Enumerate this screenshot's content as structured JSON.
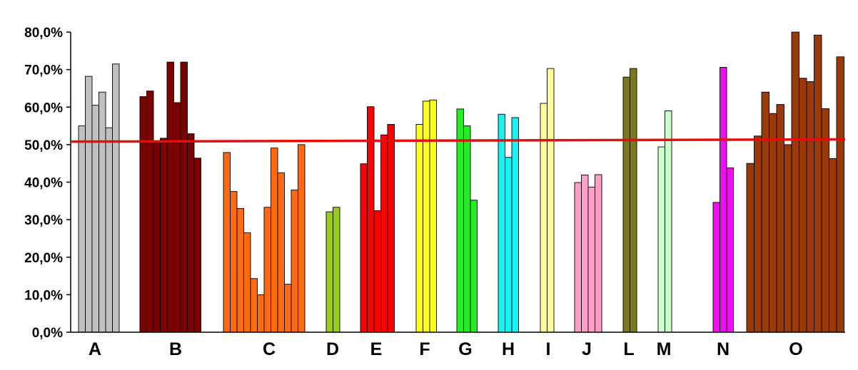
{
  "chart_data": {
    "type": "bar",
    "title": "",
    "xlabel": "",
    "ylabel": "",
    "ylim": [
      0,
      80
    ],
    "y_ticks": [
      "0,0%",
      "10,0%",
      "20,0%",
      "30,0%",
      "40,0%",
      "50,0%",
      "60,0%",
      "70,0%",
      "80,0%"
    ],
    "grid": false,
    "legend": "none",
    "reference_line": {
      "value": 50.8,
      "value_end": 51.4,
      "color": "#e01010"
    },
    "groups": [
      {
        "label": "A",
        "color": "#c0c0c0",
        "values": [
          55.0,
          68.2,
          60.5,
          64.0,
          54.5,
          71.5
        ]
      },
      {
        "label": "B",
        "color": "#7b0000",
        "values": [
          62.8,
          64.3,
          50.7,
          51.7,
          72.0,
          61.2,
          72.0,
          52.9,
          46.4
        ]
      },
      {
        "label": "C",
        "color": "#ff6a13",
        "values": [
          47.9,
          37.5,
          33.0,
          26.5,
          14.3,
          10.0,
          33.3,
          49.1,
          42.5,
          12.8,
          37.9,
          50.0
        ]
      },
      {
        "label": "D",
        "color": "#99cc1a",
        "values": [
          32.1,
          33.3
        ]
      },
      {
        "label": "E",
        "color": "#ff0000",
        "values": [
          44.9,
          60.1,
          32.4,
          52.6,
          55.4
        ]
      },
      {
        "label": "F",
        "color": "#ffff1a",
        "values": [
          55.4,
          61.6,
          61.9
        ]
      },
      {
        "label": "G",
        "color": "#22ee22",
        "values": [
          59.5,
          55.0,
          35.2
        ]
      },
      {
        "label": "H",
        "color": "#1af2f2",
        "values": [
          58.1,
          46.6,
          57.2
        ]
      },
      {
        "label": "I",
        "color": "#ffff99",
        "values": [
          61.0,
          70.3
        ]
      },
      {
        "label": "J",
        "color": "#ff9fc8",
        "values": [
          39.9,
          41.9,
          38.7,
          42.0
        ]
      },
      {
        "label": "L",
        "color": "#7a7a16",
        "values": [
          68.0,
          70.3
        ]
      },
      {
        "label": "M",
        "color": "#ccffcc",
        "values": [
          49.4,
          59.0
        ]
      },
      {
        "label": "N",
        "color": "#ee11ee",
        "values": [
          34.6,
          70.6,
          43.8
        ]
      },
      {
        "label": "O",
        "color": "#9a3a0b",
        "values": [
          45.0,
          52.3,
          64.0,
          58.3,
          60.7,
          50.0,
          80.0,
          67.7,
          66.8,
          79.2,
          59.6,
          46.3,
          73.4
        ]
      }
    ]
  }
}
